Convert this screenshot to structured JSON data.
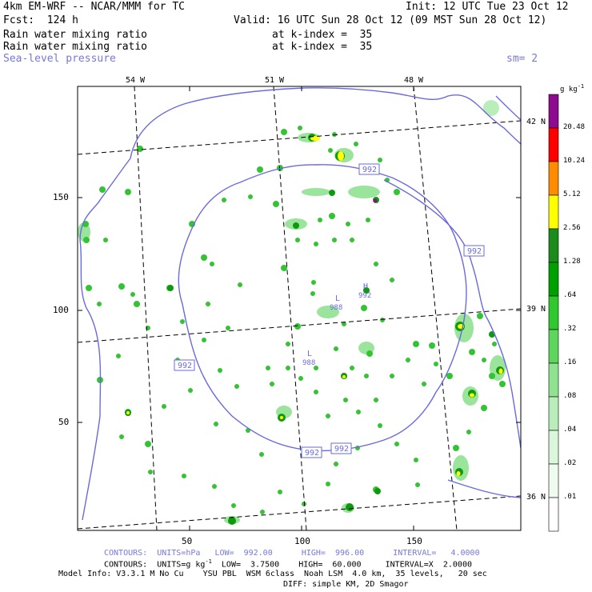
{
  "header": {
    "model_title": "4km EM-WRF -- NCAR/MMM for TC",
    "init": "Init: 12 UTC Tue 23 Oct 12",
    "fcst": "Fcst:  124 h",
    "valid": "Valid: 16 UTC Sun 28 Oct 12 (09 MST Sun 28 Oct 12)",
    "field1": "Rain water mixing ratio",
    "field1_level": "at k-index =  35",
    "field2": "Rain water mixing ratio",
    "field2_level": "at k-index =  35",
    "field3": "Sea-level pressure",
    "smoothing": "sm= 2"
  },
  "map": {
    "lon_labels": [
      "54 W",
      "51 W",
      "48 W"
    ],
    "lat_labels": [
      "42 N",
      "39 N",
      "36 N"
    ],
    "x_ticks": [
      "50",
      "100",
      "150"
    ],
    "y_ticks": [
      "150",
      "100",
      "50"
    ],
    "contour_labels": [
      "992",
      "992",
      "992",
      "992",
      "992"
    ],
    "pressure_centers": [
      {
        "type": "L",
        "value": "988"
      },
      {
        "type": "H",
        "value": "992"
      },
      {
        "type": "L",
        "value": "988"
      }
    ],
    "colors": {
      "contour": "#6a6ae0",
      "frame": "#000000"
    }
  },
  "colorbar": {
    "units_label": "g kg",
    "units_sup": "-1",
    "labels": [
      "20.48",
      "10.24",
      "5.12",
      "2.56",
      "1.28",
      ".64",
      ".32",
      ".16",
      ".08",
      ".04",
      ".02",
      ".01"
    ],
    "bands": [
      "#8e0a8e",
      "#ff0000",
      "#ff8c00",
      "#ffff00",
      "#1b8c1b",
      "#00a000",
      "#2fc82f",
      "#5ed65e",
      "#8fe28f",
      "#b9edb9",
      "#dcf6dc",
      "#f0fbf0",
      "#ffffff"
    ]
  },
  "footer": {
    "contours1": "CONTOURS:  UNITS=hPa   LOW=  992.00      HIGH=  996.00      INTERVAL=   4.0000",
    "contours2": "CONTOURS:  UNITS=g kg",
    "contours2_sup": "-1",
    "contours2_rest": "  LOW=  3.7500    HIGH=  60.000     INTERVAL=X  2.0000",
    "model_info": "Model Info: V3.3.1 M No Cu    YSU PBL  WSM 6class  Noah LSM  4.0 km,  35 levels,   20 sec",
    "diff": "DIFF: simple KM, 2D Smagor"
  }
}
